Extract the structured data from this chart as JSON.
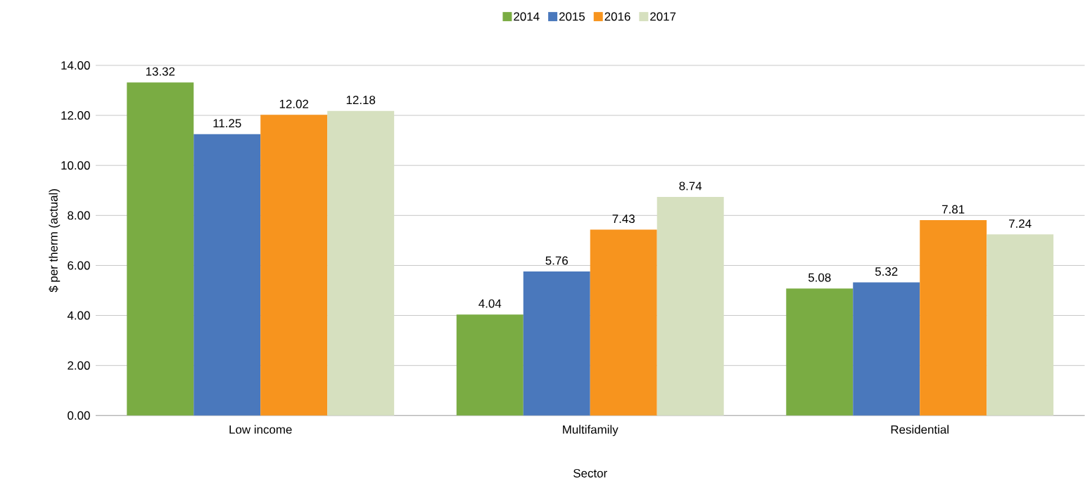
{
  "chart_data": {
    "type": "bar",
    "xlabel": "Sector",
    "ylabel": "$ per therm (actual)",
    "categories": [
      "Low income",
      "Multifamily",
      "Residential"
    ],
    "series": [
      {
        "name": "2014",
        "color": "#7aac43",
        "values": [
          13.32,
          4.04,
          5.08
        ]
      },
      {
        "name": "2015",
        "color": "#4a78bc",
        "values": [
          11.25,
          5.76,
          5.32
        ]
      },
      {
        "name": "2016",
        "color": "#f7941e",
        "values": [
          12.02,
          7.43,
          7.81
        ]
      },
      {
        "name": "2017",
        "color": "#d6e0bf",
        "values": [
          12.18,
          8.74,
          7.24
        ]
      }
    ],
    "ylim": [
      0,
      14
    ],
    "yticks": [
      {
        "value": 0,
        "label": "0.00"
      },
      {
        "value": 2,
        "label": "2.00"
      },
      {
        "value": 4,
        "label": "4.00"
      },
      {
        "value": 6,
        "label": "6.00"
      },
      {
        "value": 8,
        "label": "8.00"
      },
      {
        "value": 10,
        "label": "10.00"
      },
      {
        "value": 12,
        "label": "12.00"
      },
      {
        "value": 14,
        "label": "14.00"
      }
    ],
    "grid": "y",
    "legend": "top",
    "data_labels": true
  }
}
